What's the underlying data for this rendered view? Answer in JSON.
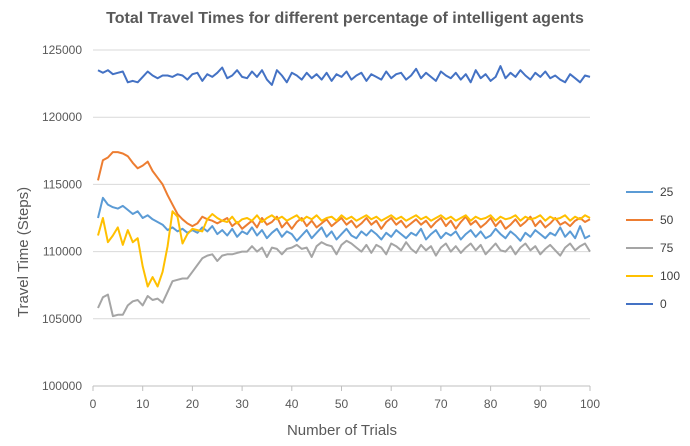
{
  "chart_data": {
    "type": "line",
    "title": "Total Travel Times for different percentage of intelligent agents",
    "xlabel": "Number of Trials",
    "ylabel": "Travel Time (Steps)",
    "xlim": [
      0,
      100
    ],
    "ylim": [
      100000,
      125000
    ],
    "x_ticks": [
      0,
      10,
      20,
      30,
      40,
      50,
      60,
      70,
      80,
      90,
      100
    ],
    "y_ticks": [
      100000,
      105000,
      110000,
      115000,
      120000,
      125000
    ],
    "grid": "horizontal",
    "legend_position": "right",
    "x": [
      1,
      2,
      3,
      4,
      5,
      6,
      7,
      8,
      9,
      10,
      11,
      12,
      13,
      14,
      15,
      16,
      17,
      18,
      19,
      20,
      21,
      22,
      23,
      24,
      25,
      26,
      27,
      28,
      29,
      30,
      31,
      32,
      33,
      34,
      35,
      36,
      37,
      38,
      39,
      40,
      41,
      42,
      43,
      44,
      45,
      46,
      47,
      48,
      49,
      50,
      51,
      52,
      53,
      54,
      55,
      56,
      57,
      58,
      59,
      60,
      61,
      62,
      63,
      64,
      65,
      66,
      67,
      68,
      69,
      70,
      71,
      72,
      73,
      74,
      75,
      76,
      77,
      78,
      79,
      80,
      81,
      82,
      83,
      84,
      85,
      86,
      87,
      88,
      89,
      90,
      91,
      92,
      93,
      94,
      95,
      96,
      97,
      98,
      99,
      100
    ],
    "series": [
      {
        "name": "25",
        "color": "#5b9bd5",
        "values": [
          112500,
          114000,
          113500,
          113300,
          113200,
          113400,
          113100,
          112800,
          113000,
          112500,
          112700,
          112400,
          112200,
          112000,
          111600,
          111800,
          111500,
          111700,
          111400,
          111600,
          111400,
          111800,
          111500,
          111900,
          111300,
          111600,
          111200,
          111700,
          111100,
          111500,
          111300,
          111800,
          111200,
          111600,
          111000,
          111400,
          111700,
          111100,
          111500,
          111300,
          110800,
          111200,
          111600,
          111000,
          111400,
          111800,
          111100,
          111500,
          110900,
          111300,
          111700,
          111200,
          111000,
          111500,
          111200,
          111600,
          111300,
          110900,
          111400,
          111100,
          111600,
          111300,
          111000,
          111400,
          111200,
          111700,
          110900,
          111300,
          111600,
          111000,
          111400,
          111200,
          111500,
          110900,
          111300,
          111600,
          111100,
          111500,
          111000,
          111200,
          111700,
          111300,
          111000,
          111500,
          111200,
          110800,
          111400,
          111100,
          111600,
          111300,
          111000,
          111400,
          111200,
          111800,
          111100,
          111500,
          111000,
          111900,
          111000,
          111200
        ]
      },
      {
        "name": "50",
        "color": "#ed7d31",
        "values": [
          115300,
          116800,
          117000,
          117400,
          117400,
          117300,
          117100,
          116600,
          116200,
          116400,
          116700,
          116000,
          115500,
          115000,
          114200,
          113500,
          112800,
          112400,
          112100,
          111900,
          112100,
          112600,
          112400,
          112300,
          112100,
          112300,
          112500,
          111900,
          112200,
          111700,
          112000,
          112300,
          111800,
          112500,
          112000,
          112200,
          112600,
          111800,
          112200,
          111700,
          112200,
          112500,
          111900,
          112300,
          111800,
          112100,
          112400,
          111900,
          112200,
          112500,
          112000,
          112300,
          111800,
          112100,
          112500,
          112000,
          112300,
          111700,
          112200,
          112500,
          112000,
          112300,
          111800,
          112100,
          112400,
          112000,
          112300,
          111800,
          112200,
          112500,
          111900,
          112300,
          111700,
          112200,
          112600,
          112000,
          112300,
          111800,
          112100,
          112500,
          111900,
          112300,
          111700,
          112000,
          112400,
          111900,
          112200,
          112600,
          111900,
          112300,
          111800,
          112100,
          112500,
          112000,
          112200,
          111900,
          112300,
          112500,
          112200,
          112400
        ]
      },
      {
        "name": "75",
        "color": "#a5a5a5",
        "values": [
          105800,
          106600,
          106800,
          105200,
          105300,
          105300,
          106000,
          106300,
          106400,
          106000,
          106700,
          106400,
          106500,
          106200,
          107000,
          107800,
          107900,
          108000,
          108000,
          108500,
          109000,
          109500,
          109700,
          109800,
          109300,
          109700,
          109800,
          109800,
          109900,
          110000,
          110000,
          110400,
          110000,
          110300,
          109600,
          110300,
          110200,
          109800,
          110200,
          110300,
          110500,
          110200,
          110300,
          109600,
          110400,
          110700,
          110500,
          110400,
          109800,
          110500,
          110800,
          110600,
          110300,
          110000,
          110500,
          109900,
          110500,
          110300,
          109800,
          110600,
          110400,
          110100,
          110700,
          110200,
          109900,
          110500,
          110100,
          110400,
          109700,
          110300,
          110600,
          110000,
          110400,
          109900,
          110300,
          110600,
          110100,
          110500,
          109800,
          110200,
          110600,
          110100,
          110000,
          110400,
          109800,
          110300,
          110600,
          110100,
          110400,
          109800,
          110200,
          110500,
          110100,
          109700,
          110300,
          110600,
          110100,
          110400,
          110600,
          110000
        ]
      },
      {
        "name": "100",
        "color": "#ffc000",
        "values": [
          111200,
          112500,
          110700,
          111200,
          111800,
          110500,
          111600,
          110700,
          111000,
          108900,
          107400,
          108100,
          107400,
          108500,
          110400,
          113000,
          112600,
          110600,
          111300,
          111700,
          111600,
          111500,
          112400,
          112800,
          112500,
          112300,
          112200,
          112600,
          112100,
          112400,
          112500,
          112300,
          112700,
          112200,
          112500,
          112700,
          112400,
          112600,
          112300,
          112500,
          112700,
          112300,
          112600,
          112400,
          112700,
          112300,
          112500,
          112600,
          112300,
          112700,
          112400,
          112600,
          112300,
          112500,
          112700,
          112400,
          112600,
          112300,
          112500,
          112700,
          112400,
          112600,
          112300,
          112500,
          112700,
          112400,
          112600,
          112300,
          112500,
          112700,
          112400,
          112600,
          112300,
          112500,
          112700,
          112300,
          112600,
          112400,
          112500,
          112700,
          112300,
          112600,
          112400,
          112500,
          112700,
          112300,
          112600,
          112400,
          112500,
          112700,
          112300,
          112600,
          112400,
          112500,
          112700,
          112300,
          112600,
          112400,
          112700,
          112500
        ]
      },
      {
        "name": "0",
        "color": "#4472c4",
        "values": [
          123500,
          123300,
          123500,
          123200,
          123300,
          123400,
          122600,
          122700,
          122600,
          123000,
          123400,
          123100,
          122900,
          123100,
          123100,
          123000,
          123200,
          123100,
          122800,
          123200,
          123300,
          122700,
          123200,
          123000,
          123300,
          123700,
          122900,
          123100,
          123500,
          123000,
          122900,
          123400,
          123000,
          123500,
          122800,
          122400,
          123500,
          123100,
          122600,
          123300,
          123100,
          122800,
          123300,
          122900,
          123200,
          122800,
          123300,
          122700,
          123200,
          123000,
          123400,
          122800,
          123100,
          123300,
          122700,
          123200,
          123000,
          122800,
          123400,
          122900,
          123200,
          123300,
          122800,
          123100,
          123600,
          122900,
          123300,
          123000,
          122700,
          123400,
          123100,
          122900,
          123300,
          122800,
          123200,
          122600,
          123500,
          122900,
          123200,
          122700,
          123000,
          123800,
          122900,
          123300,
          123000,
          123500,
          123100,
          122800,
          123300,
          123000,
          123400,
          122900,
          123100,
          122800,
          122600,
          123200,
          122900,
          122600,
          123100,
          123000
        ]
      }
    ]
  }
}
